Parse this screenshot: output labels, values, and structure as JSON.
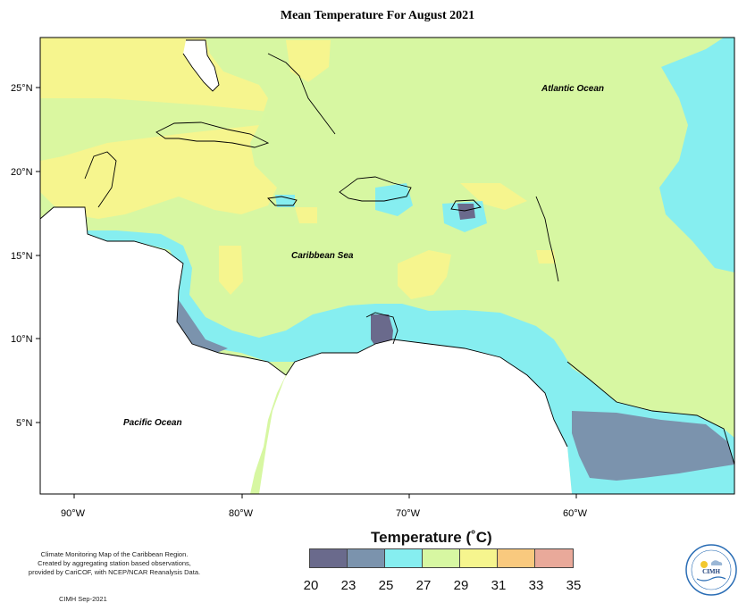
{
  "title": "Mean Temperature For August 2021",
  "axes": {
    "lat_labels": [
      "25°N",
      "20°N",
      "15°N",
      "10°N",
      "5°N"
    ],
    "lon_labels": [
      "90°W",
      "80°W",
      "70°W",
      "60°W"
    ]
  },
  "regions": {
    "atlantic": "Atlantic Ocean",
    "caribbean": "Caribbean Sea",
    "pacific": "Pacific Ocean"
  },
  "legend": {
    "title": "Temperature (˚C)",
    "ticks": [
      "20",
      "23",
      "25",
      "27",
      "29",
      "31",
      "33",
      "35"
    ],
    "colors": [
      "#6a6a8c",
      "#7b93ad",
      "#86eef0",
      "#d7f7a2",
      "#f6f58e",
      "#f9c97e",
      "#e9a99a"
    ]
  },
  "credit": {
    "line1": "Climate Monitoring Map of the Caribbean Region.",
    "line2": "Created by aggregating station based observations,",
    "line3": "provided by CariCOF, with NCEP/NCAR Reanalysis Data.",
    "date": "CIMH Sep-2021"
  },
  "logo": {
    "text": "CIMH"
  }
}
